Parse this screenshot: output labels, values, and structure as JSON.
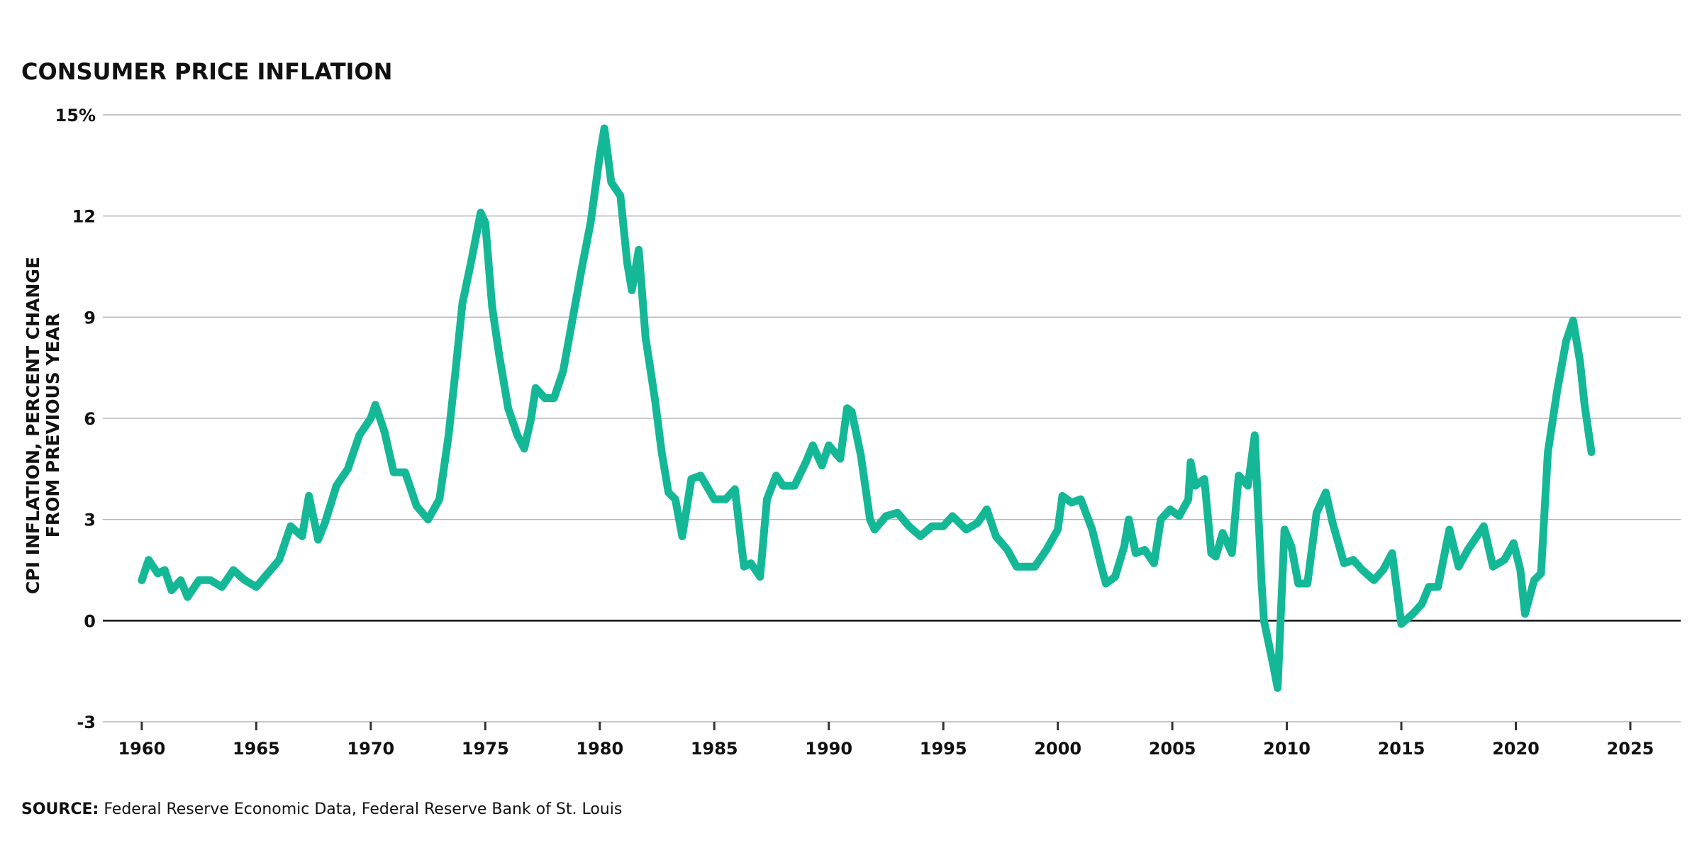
{
  "chart_data": {
    "type": "line",
    "title": "CONSUMER PRICE INFLATION",
    "y_label": [
      "CPI INFLATION, PERCENT CHANGE",
      "FROM PREVIOUS YEAR"
    ],
    "source": {
      "label": "SOURCE:",
      "text": "Federal Reserve Economic Data, Federal Reserve Bank of St. Louis"
    },
    "xlim": [
      1958.3,
      2027.2
    ],
    "xticks": [
      1960,
      1965,
      1970,
      1975,
      1980,
      1985,
      1990,
      1995,
      2000,
      2005,
      2010,
      2015,
      2020,
      2025
    ],
    "ylim": [
      -3,
      15
    ],
    "yticks": [
      -3,
      0,
      3,
      6,
      9,
      12,
      {
        "value": 15,
        "label": "15%"
      }
    ],
    "grid": true,
    "series": [
      {
        "color": "#14b897",
        "x": [
          1960.0,
          1960.3,
          1960.7,
          1961.0,
          1961.3,
          1961.7,
          1962.0,
          1962.5,
          1963.0,
          1963.5,
          1964.0,
          1964.5,
          1965.0,
          1965.5,
          1966.0,
          1966.5,
          1967.0,
          1967.3,
          1967.7,
          1968.0,
          1968.5,
          1969.0,
          1969.5,
          1970.0,
          1970.2,
          1970.6,
          1971.0,
          1971.5,
          1972.0,
          1972.5,
          1973.0,
          1973.4,
          1973.7,
          1974.0,
          1974.4,
          1974.8,
          1975.0,
          1975.3,
          1975.6,
          1976.0,
          1976.4,
          1976.7,
          1977.0,
          1977.2,
          1977.6,
          1978.0,
          1978.4,
          1978.8,
          1979.2,
          1979.6,
          1980.0,
          1980.2,
          1980.5,
          1980.9,
          1981.2,
          1981.4,
          1981.7,
          1982.0,
          1982.4,
          1982.7,
          1983.0,
          1983.3,
          1983.6,
          1984.0,
          1984.4,
          1985.0,
          1985.5,
          1985.9,
          1986.3,
          1986.6,
          1987.0,
          1987.3,
          1987.7,
          1988.0,
          1988.5,
          1989.0,
          1989.3,
          1989.7,
          1990.0,
          1990.5,
          1990.8,
          1991.0,
          1991.4,
          1991.8,
          1992.0,
          1992.5,
          1993.0,
          1993.5,
          1994.0,
          1994.5,
          1995.0,
          1995.4,
          1996.0,
          1996.5,
          1996.9,
          1997.3,
          1997.8,
          1998.2,
          1998.6,
          1999.0,
          1999.5,
          2000.0,
          2000.2,
          2000.6,
          2001.0,
          2001.5,
          2001.9,
          2002.1,
          2002.5,
          2002.9,
          2003.1,
          2003.4,
          2003.8,
          2004.2,
          2004.5,
          2004.9,
          2005.3,
          2005.7,
          2005.8,
          2006.0,
          2006.4,
          2006.7,
          2006.9,
          2007.2,
          2007.6,
          2007.9,
          2008.3,
          2008.6,
          2008.9,
          2009.0,
          2009.4,
          2009.6,
          2009.9,
          2010.2,
          2010.5,
          2010.9,
          2011.3,
          2011.7,
          2012.0,
          2012.5,
          2012.9,
          2013.3,
          2013.8,
          2014.2,
          2014.6,
          2015.0,
          2015.5,
          2015.9,
          2016.2,
          2016.6,
          2017.1,
          2017.5,
          2017.9,
          2018.3,
          2018.6,
          2019.0,
          2019.5,
          2019.9,
          2020.2,
          2020.4,
          2020.8,
          2021.1,
          2021.4,
          2021.8,
          2022.2,
          2022.5,
          2022.8,
          2023.0,
          2023.3
        ],
        "values": [
          1.2,
          1.8,
          1.4,
          1.5,
          0.9,
          1.2,
          0.7,
          1.2,
          1.2,
          1.0,
          1.5,
          1.2,
          1.0,
          1.4,
          1.8,
          2.8,
          2.5,
          3.7,
          2.4,
          2.9,
          4.0,
          4.5,
          5.5,
          6.0,
          6.4,
          5.6,
          4.4,
          4.4,
          3.4,
          3.0,
          3.6,
          5.5,
          7.4,
          9.4,
          10.7,
          12.1,
          11.8,
          9.3,
          7.9,
          6.3,
          5.5,
          5.1,
          6.0,
          6.9,
          6.6,
          6.6,
          7.4,
          8.9,
          10.4,
          11.8,
          13.8,
          14.6,
          13.0,
          12.6,
          10.6,
          9.8,
          11.0,
          8.4,
          6.6,
          5.0,
          3.8,
          3.6,
          2.5,
          4.2,
          4.3,
          3.6,
          3.6,
          3.9,
          1.6,
          1.7,
          1.3,
          3.6,
          4.3,
          4.0,
          4.0,
          4.7,
          5.2,
          4.6,
          5.2,
          4.8,
          6.3,
          6.2,
          4.9,
          3.0,
          2.7,
          3.1,
          3.2,
          2.8,
          2.5,
          2.8,
          2.8,
          3.1,
          2.7,
          2.9,
          3.3,
          2.5,
          2.1,
          1.6,
          1.6,
          1.6,
          2.1,
          2.7,
          3.7,
          3.5,
          3.6,
          2.7,
          1.6,
          1.1,
          1.3,
          2.2,
          3.0,
          2.0,
          2.1,
          1.7,
          3.0,
          3.3,
          3.1,
          3.6,
          4.7,
          4.0,
          4.2,
          2.0,
          1.9,
          2.6,
          2.0,
          4.3,
          4.0,
          5.5,
          1.1,
          0.0,
          -1.3,
          -2.0,
          2.7,
          2.2,
          1.1,
          1.1,
          3.2,
          3.8,
          2.9,
          1.7,
          1.8,
          1.5,
          1.2,
          1.5,
          2.0,
          -0.1,
          0.2,
          0.5,
          1.0,
          1.0,
          2.7,
          1.6,
          2.1,
          2.5,
          2.8,
          1.6,
          1.8,
          2.3,
          1.5,
          0.2,
          1.2,
          1.4,
          5.0,
          6.8,
          8.3,
          8.9,
          7.7,
          6.4,
          5.0
        ]
      }
    ]
  }
}
